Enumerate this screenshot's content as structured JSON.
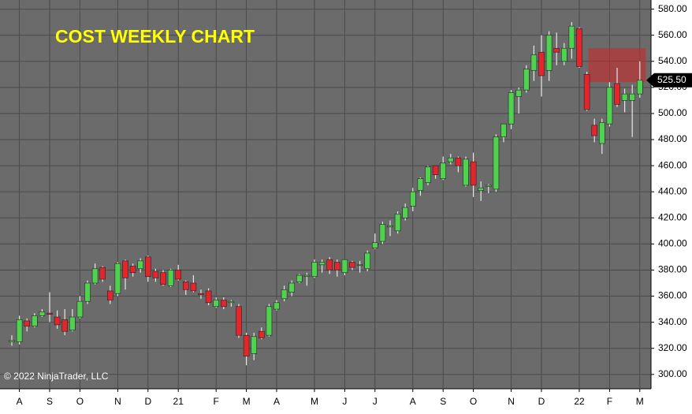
{
  "chart_data": {
    "type": "candlestick",
    "title": "COST WEEKLY CHART",
    "copyright": "© 2022 NinjaTrader, LLC",
    "categories": [
      null,
      "A",
      null,
      null,
      null,
      "S",
      null,
      null,
      null,
      "O",
      null,
      null,
      null,
      null,
      "N",
      null,
      null,
      null,
      "D",
      null,
      null,
      null,
      "21",
      null,
      null,
      null,
      null,
      "F",
      null,
      null,
      null,
      "M",
      null,
      null,
      null,
      "A",
      null,
      null,
      null,
      null,
      "M",
      null,
      null,
      null,
      "J",
      null,
      null,
      null,
      "J",
      null,
      null,
      null,
      null,
      "A",
      null,
      null,
      null,
      "S",
      null,
      null,
      null,
      "O",
      null,
      null,
      null,
      null,
      "N",
      null,
      null,
      null,
      "D",
      null,
      null,
      null,
      null,
      "22",
      null,
      null,
      null,
      "F",
      null,
      null,
      null,
      "M"
    ],
    "open": [
      325,
      325,
      341,
      337,
      345,
      347,
      344,
      342,
      334,
      344,
      356,
      370,
      382,
      364,
      362,
      387,
      383,
      381,
      390,
      379,
      378,
      368,
      380,
      371,
      370,
      362,
      364,
      352,
      357,
      355,
      352,
      330,
      316,
      333,
      330,
      350,
      358,
      363,
      371,
      375,
      375,
      384,
      388,
      386,
      378,
      386,
      384,
      381,
      397,
      402,
      413,
      410,
      420,
      429,
      441,
      447,
      460,
      450,
      463,
      466,
      445,
      463,
      441,
      444,
      442,
      482,
      492,
      513,
      518,
      533,
      547,
      533,
      550,
      540,
      550,
      565,
      530,
      491,
      477,
      492,
      523,
      510,
      510,
      515
    ],
    "high": [
      330,
      345,
      343,
      347,
      350,
      363,
      349,
      350,
      350,
      360,
      372,
      385,
      383,
      368,
      386,
      388,
      385,
      389,
      391,
      381,
      380,
      381,
      384,
      372,
      376,
      365,
      366,
      359,
      359,
      357,
      354,
      332,
      332,
      336,
      354,
      357,
      368,
      372,
      377,
      378,
      388,
      388,
      390,
      388,
      388,
      387,
      387,
      395,
      408,
      417,
      418,
      425,
      431,
      443,
      451,
      460,
      460,
      467,
      469,
      467,
      467,
      470,
      448,
      446,
      484,
      492,
      518,
      520,
      537,
      552,
      560,
      563,
      562,
      554,
      570,
      566,
      532,
      496,
      496,
      524,
      535,
      519,
      522,
      540
    ],
    "low": [
      322,
      323,
      333,
      336,
      344,
      340,
      335,
      330,
      333,
      343,
      354,
      369,
      371,
      354,
      360,
      365,
      375,
      378,
      371,
      371,
      368,
      367,
      372,
      361,
      363,
      358,
      353,
      351,
      350,
      352,
      328,
      307,
      311,
      327,
      329,
      349,
      356,
      360,
      370,
      368,
      374,
      378,
      377,
      375,
      376,
      380,
      378,
      379,
      396,
      400,
      406,
      408,
      418,
      425,
      437,
      445,
      450,
      449,
      461,
      455,
      444,
      436,
      433,
      439,
      440,
      478,
      488,
      500,
      516,
      525,
      513,
      525,
      537,
      537,
      542,
      535,
      502,
      478,
      469,
      490,
      505,
      501,
      482,
      512
    ],
    "close": [
      326,
      342,
      337,
      345,
      348,
      346,
      338,
      333,
      344,
      356,
      370,
      381,
      373,
      357,
      385,
      374,
      378,
      387,
      375,
      374,
      369,
      380,
      373,
      365,
      364,
      361,
      355,
      357,
      352,
      356,
      330,
      314,
      329,
      328,
      352,
      355,
      365,
      370,
      376,
      376,
      386,
      386,
      380,
      380,
      388,
      382,
      384,
      393,
      401,
      415,
      414,
      423,
      428,
      440,
      450,
      459,
      453,
      462,
      466,
      460,
      465,
      445,
      443,
      445,
      482,
      492,
      516,
      518,
      534,
      545,
      529,
      560,
      547,
      550,
      567,
      536,
      503,
      483,
      493,
      520,
      507,
      515,
      515,
      525.5
    ],
    "last_close": {
      "value": 525.5,
      "label": "525.50"
    },
    "up_color": "#4fd34f",
    "down_color": "#e3262b",
    "zone": {
      "low": 524,
      "high": 550,
      "start": 78,
      "end": 83,
      "color": "rgba(200,40,40,0.6)"
    },
    "ylim": [
      289,
      587
    ],
    "yticks": [
      {
        "value": 300,
        "label": "300.00"
      },
      {
        "value": 320,
        "label": "320.00"
      },
      {
        "value": 340,
        "label": "340.00"
      },
      {
        "value": 360,
        "label": "360.00"
      },
      {
        "value": 380,
        "label": "380.00"
      },
      {
        "value": 400,
        "label": "400.00"
      },
      {
        "value": 420,
        "label": "420.00"
      },
      {
        "value": 440,
        "label": "440.00"
      },
      {
        "value": 460,
        "label": "460.00"
      },
      {
        "value": 480,
        "label": "480.00"
      },
      {
        "value": 500,
        "label": "500.00"
      },
      {
        "value": 520,
        "label": "520.00"
      },
      {
        "value": 540,
        "label": "540.00"
      },
      {
        "value": 560,
        "label": "560.00"
      },
      {
        "value": 580,
        "label": "580.00"
      }
    ],
    "grid": true
  }
}
